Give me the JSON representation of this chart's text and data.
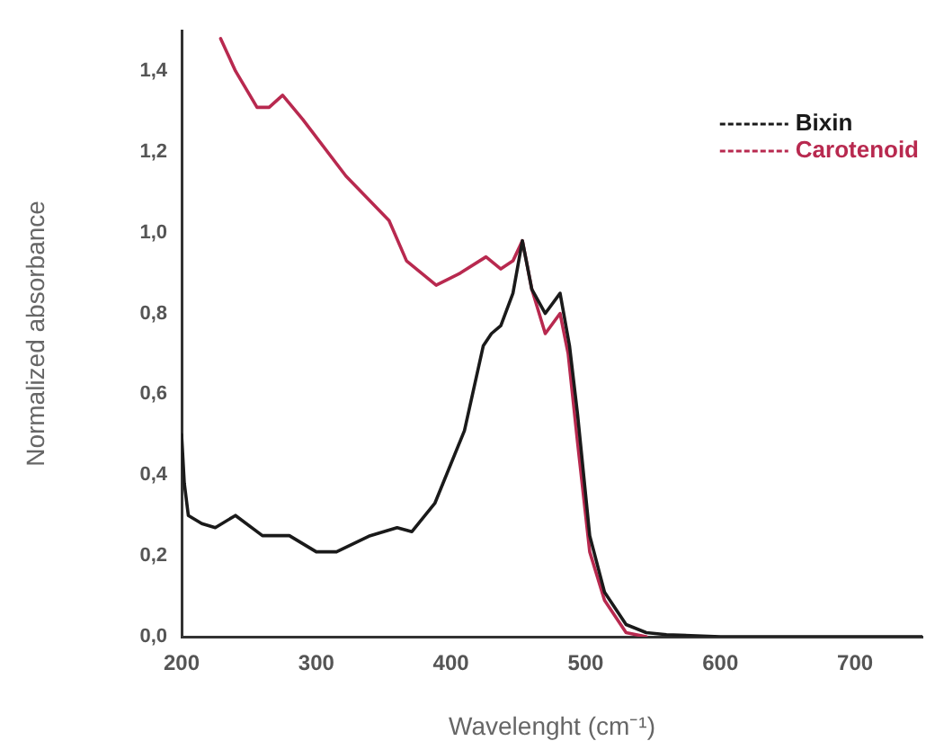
{
  "chart_data": {
    "type": "line",
    "xlabel": "Wavelenght (cm⁻¹)",
    "ylabel": "Normalized absorbance",
    "xlim": [
      200,
      750
    ],
    "ylim": [
      0,
      1.5
    ],
    "xticks": [
      200,
      300,
      400,
      500,
      600,
      700
    ],
    "yticks": [
      {
        "value": 0,
        "label": "0,0"
      },
      {
        "value": 0.2,
        "label": "0,2"
      },
      {
        "value": 0.4,
        "label": "0,4"
      },
      {
        "value": 0.6,
        "label": "0,6"
      },
      {
        "value": 0.8,
        "label": "0,8"
      },
      {
        "value": 1.0,
        "label": "1,0"
      },
      {
        "value": 1.2,
        "label": "1,2"
      },
      {
        "value": 1.4,
        "label": "1,4"
      }
    ],
    "grid": false,
    "legend": "top right",
    "marker": "none",
    "line_style": "solid",
    "series": [
      {
        "name": "Bixin",
        "color": "#1a1a1a",
        "x": [
          200,
          202,
          205,
          210,
          215,
          225,
          240,
          260,
          280,
          300,
          315,
          340,
          360,
          371,
          388,
          410,
          424,
          430,
          437,
          446,
          453,
          460,
          470,
          481,
          488,
          494,
          503,
          514,
          530,
          545,
          560,
          600,
          750
        ],
        "values": [
          0.5,
          0.38,
          0.3,
          0.29,
          0.28,
          0.27,
          0.3,
          0.25,
          0.25,
          0.21,
          0.21,
          0.25,
          0.27,
          0.26,
          0.33,
          0.51,
          0.72,
          0.75,
          0.77,
          0.85,
          0.98,
          0.86,
          0.8,
          0.85,
          0.72,
          0.55,
          0.25,
          0.11,
          0.03,
          0.01,
          0.005,
          0,
          0
        ]
      },
      {
        "name": "Carotenoid",
        "color": "#b8294f",
        "x": [
          229,
          240,
          256,
          265,
          275,
          290,
          322,
          354,
          367,
          389,
          407,
          426,
          437,
          446,
          453,
          460,
          470,
          481,
          487,
          494,
          503,
          514,
          530,
          545
        ],
        "values": [
          1.48,
          1.4,
          1.31,
          1.31,
          1.34,
          1.28,
          1.14,
          1.03,
          0.93,
          0.87,
          0.9,
          0.94,
          0.91,
          0.93,
          0.98,
          0.86,
          0.75,
          0.8,
          0.7,
          0.48,
          0.21,
          0.09,
          0.01,
          0
        ]
      }
    ]
  }
}
